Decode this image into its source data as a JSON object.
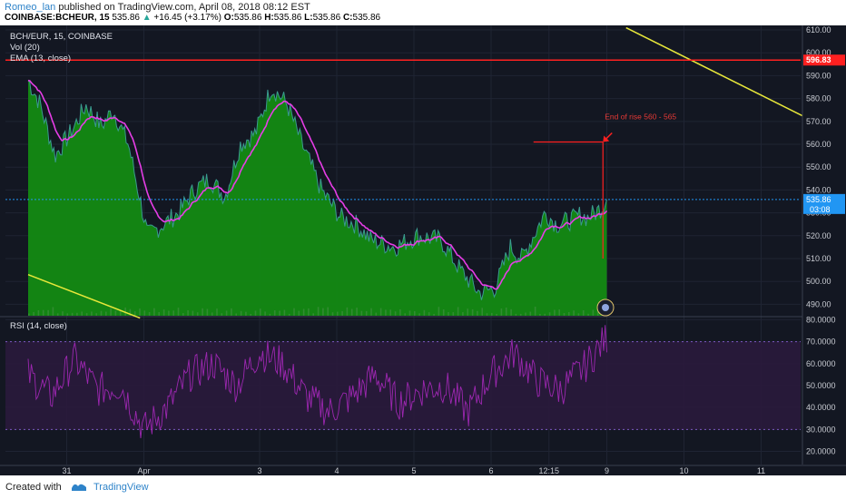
{
  "header": {
    "author": "Romeo_lan",
    "published_text": "published on TradingView.com, April 08, 2018 08:12 EST",
    "symbol": "COINBASE:BCHEUR, 15",
    "last": "535.86",
    "change": "+16.45 (+3.17%)",
    "o_label": "O:",
    "o_value": "535.86",
    "h_label": "H:",
    "h_value": "535.86",
    "l_label": "L:",
    "l_value": "535.86",
    "c_label": "C:",
    "c_value": "535.86"
  },
  "footer": {
    "created_with": "Created with",
    "brand": "TradingView"
  },
  "colors": {
    "background": "#131722",
    "area_fill": "#138a13",
    "price_line": "#3a9b8f",
    "ema": "#e63de6",
    "trendline": "#e8e83a",
    "resistance": "#ff2020",
    "rsi": "#9c27b0",
    "last_price_label": "#2196f3"
  },
  "chart_data": [
    {
      "type": "area",
      "title": "BCH/EUR, 15, COINBASE",
      "legend": [
        "Vol (20)",
        "EMA (13, close)"
      ],
      "x_ticks": [
        "31",
        "Apr",
        "3",
        "4",
        "5",
        "6",
        "12:15",
        "9",
        "10",
        "11"
      ],
      "x_days": [
        0.5,
        1.5,
        3,
        4,
        5,
        6,
        6.75,
        7.5,
        8.5,
        9.5
      ],
      "ylim": [
        485,
        612
      ],
      "y_ticks": [
        490,
        500,
        510,
        520,
        530,
        540,
        550,
        560,
        570,
        580,
        590,
        600,
        610
      ],
      "y_tick_labels": [
        "490.00",
        "500.00",
        "510.00",
        "520.00",
        "530.00",
        "540.00",
        "550.00",
        "560.00",
        "570.00",
        "580.00",
        "590.00",
        "600.00",
        "610.00"
      ],
      "price_keypoints": {
        "day": [
          0.0,
          0.15,
          0.35,
          0.55,
          0.75,
          0.95,
          1.1,
          1.3,
          1.55,
          1.75,
          1.95,
          2.15,
          2.35,
          2.55,
          2.75,
          2.95,
          3.15,
          3.35,
          3.55,
          3.8,
          4.05,
          4.25,
          4.45,
          4.75,
          5.05,
          5.35,
          5.6,
          5.85,
          6.05,
          6.25,
          6.4,
          6.55,
          6.7,
          6.85,
          6.95,
          7.05,
          7.15,
          7.25,
          7.35,
          7.45,
          7.5
        ],
        "price": [
          588,
          578,
          555,
          565,
          577,
          568,
          575,
          560,
          520,
          525,
          530,
          540,
          545,
          537,
          560,
          565,
          585,
          578,
          560,
          540,
          528,
          525,
          518,
          515,
          520,
          518,
          505,
          495,
          497,
          515,
          510,
          520,
          530,
          525,
          526,
          527,
          529,
          528,
          530,
          533,
          535.86
        ]
      },
      "last_price": "535.86",
      "countdown": "03:08",
      "resistance": {
        "value": 596.83,
        "label": "596.83"
      },
      "trendlines": [
        {
          "from": [
            0.0,
            503
          ],
          "to": [
            1.45,
            484
          ]
        },
        {
          "from": [
            7.75,
            611
          ],
          "to": [
            10.3,
            568
          ]
        }
      ],
      "annotation": {
        "text": "End of rise 560 - 565",
        "arrow_tip": [
          7.45,
          561
        ],
        "horizontal_from": [
          6.55,
          561
        ],
        "vertical_to": [
          7.45,
          510
        ]
      }
    },
    {
      "type": "line",
      "title": "RSI (14, close)",
      "ylim": [
        14,
        81
      ],
      "y_ticks": [
        20,
        30,
        40,
        50,
        60,
        70,
        80
      ],
      "y_tick_labels": [
        "20.0000",
        "30.0000",
        "40.0000",
        "50.0000",
        "60.0000",
        "70.0000",
        "80.0000"
      ],
      "bands": [
        30,
        70
      ],
      "rsi_keypoints": {
        "day": [
          0.0,
          0.3,
          0.6,
          0.9,
          1.2,
          1.5,
          1.8,
          2.1,
          2.4,
          2.7,
          3.0,
          3.3,
          3.6,
          3.9,
          4.2,
          4.5,
          4.8,
          5.1,
          5.4,
          5.7,
          6.0,
          6.3,
          6.6,
          6.9,
          7.2,
          7.5
        ],
        "value": [
          55,
          45,
          62,
          48,
          50,
          30,
          40,
          55,
          60,
          50,
          65,
          60,
          45,
          38,
          45,
          55,
          42,
          48,
          50,
          38,
          55,
          65,
          52,
          48,
          58,
          72
        ]
      }
    }
  ]
}
